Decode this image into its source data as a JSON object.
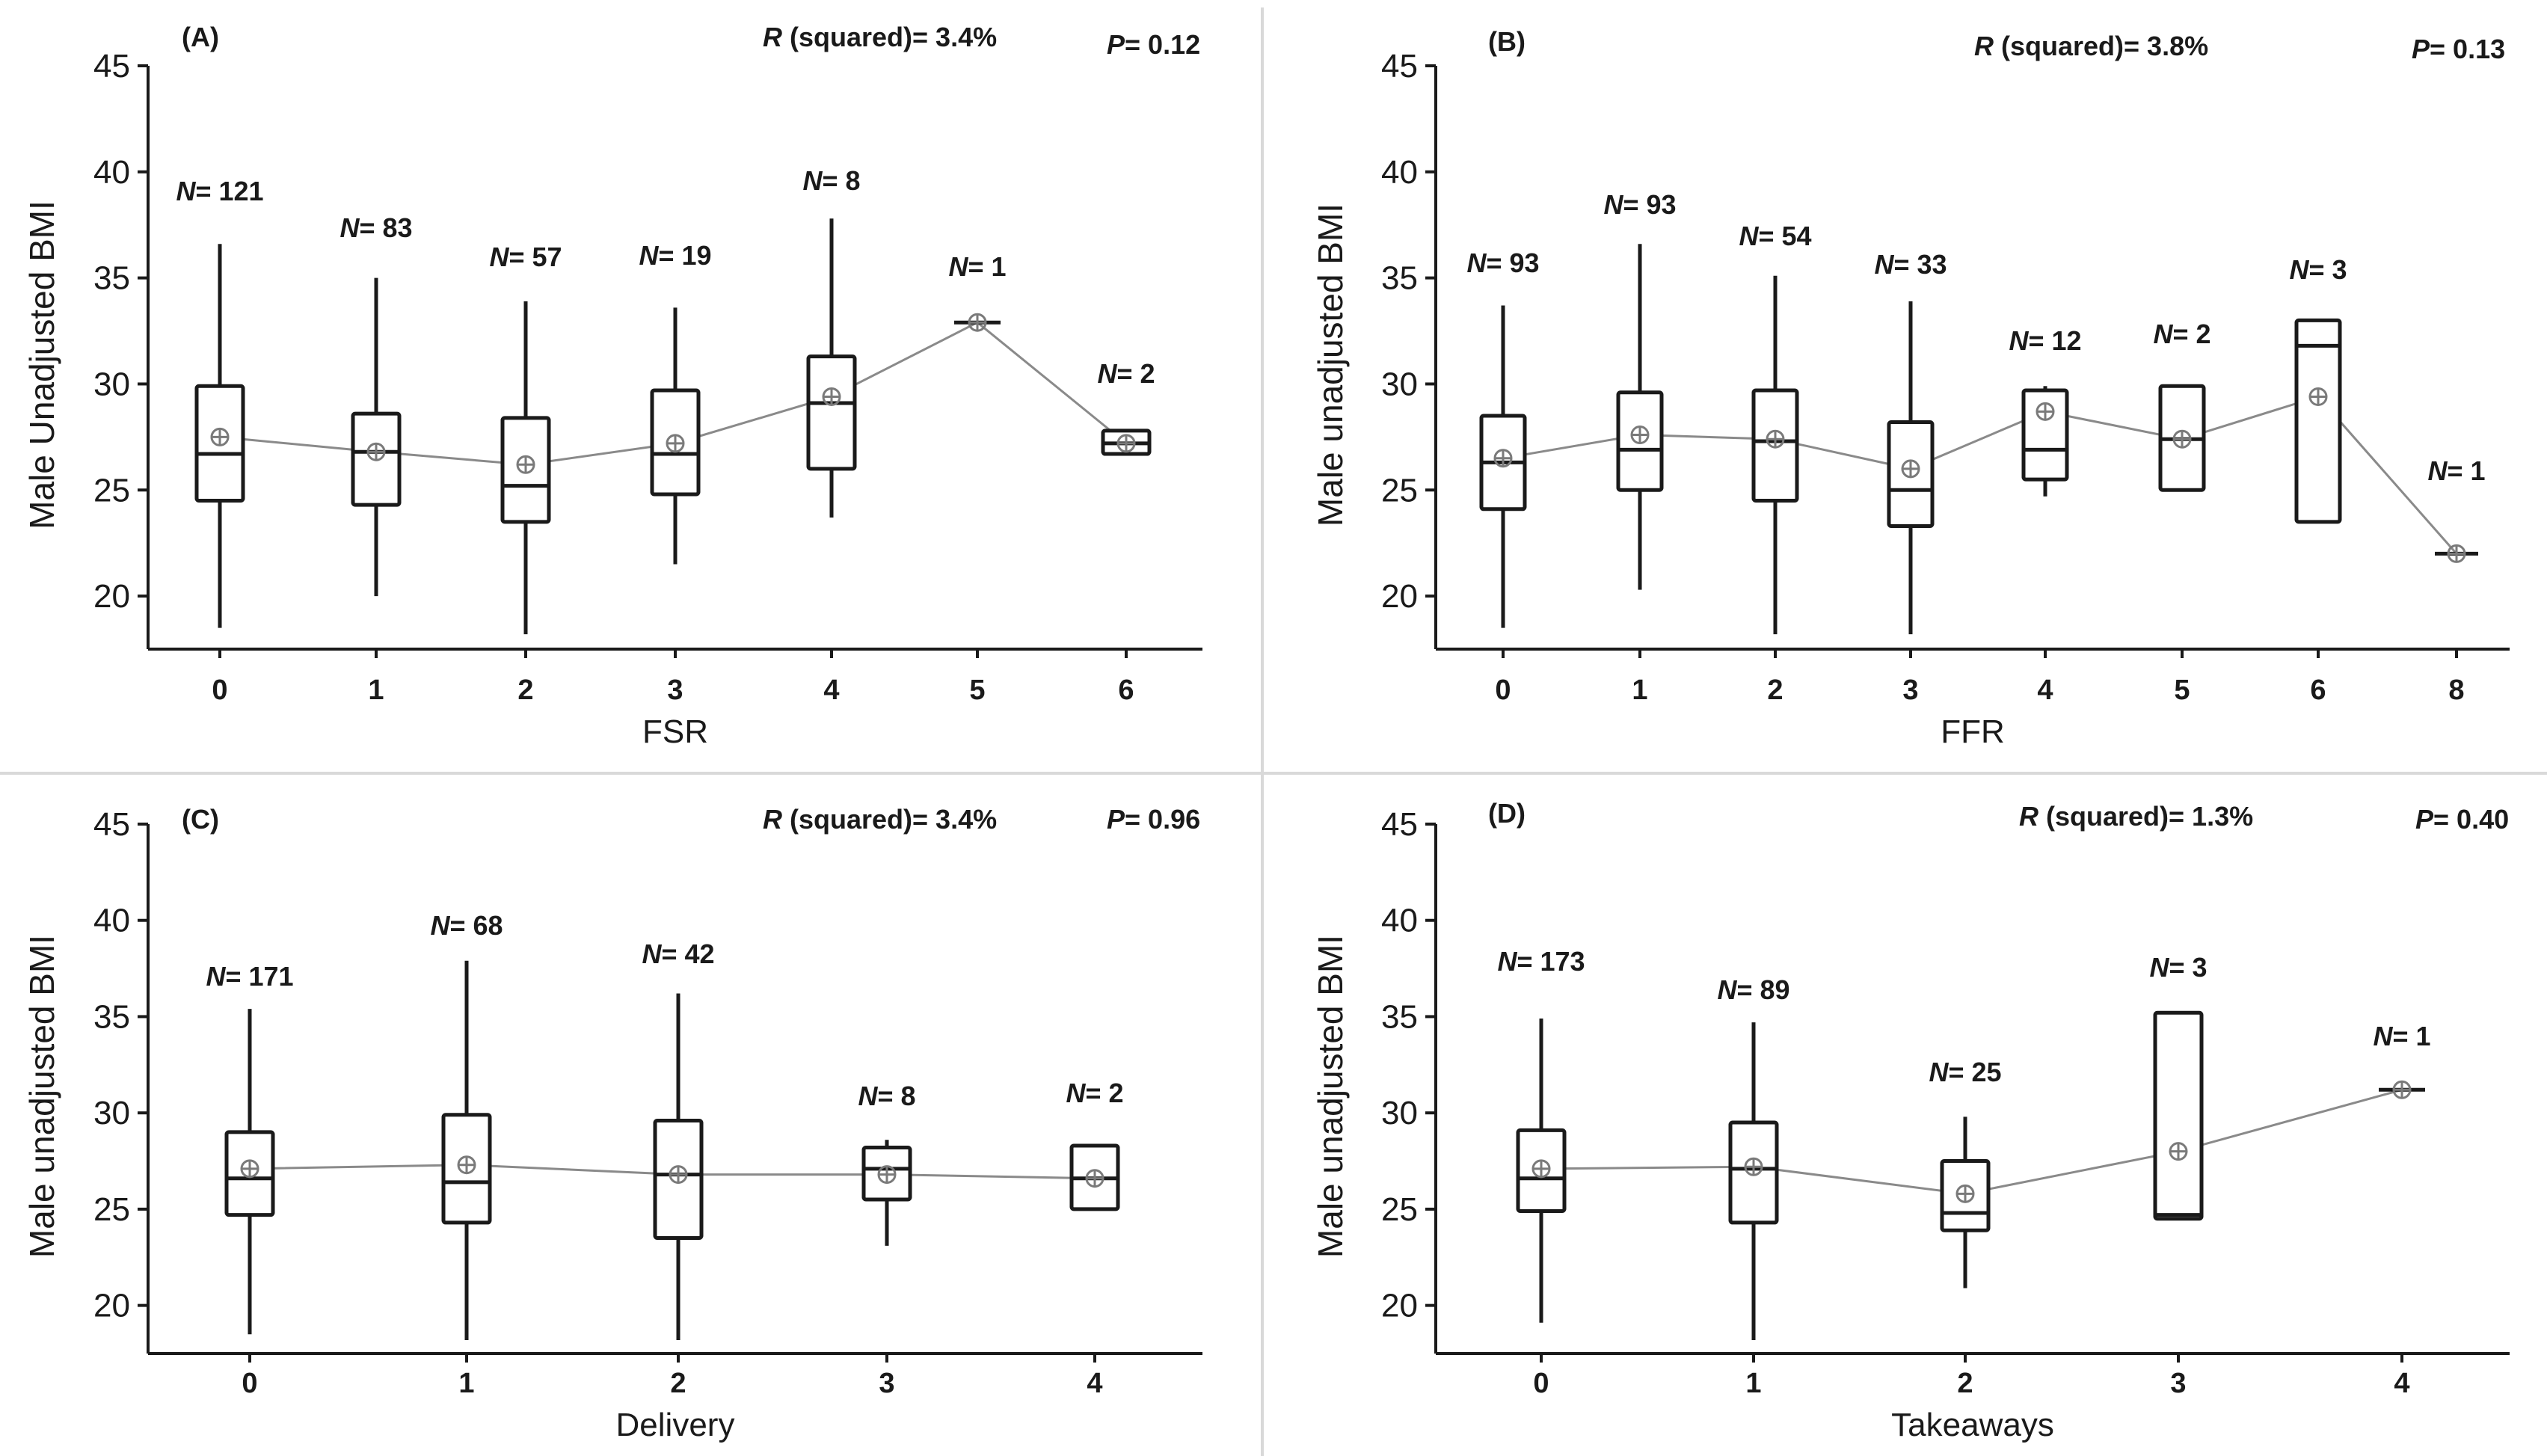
{
  "chart_data": [
    {
      "type": "box",
      "panel_label": "(A)",
      "xlabel": "FSR",
      "ylabel": "Male Unadjusted BMI",
      "ylim": [
        17.5,
        45
      ],
      "yticks": [
        20,
        25,
        30,
        35,
        40,
        45
      ],
      "r_squared": "3.4%",
      "p_value": "0.12",
      "categories": [
        "0",
        "1",
        "2",
        "3",
        "4",
        "5",
        "6"
      ],
      "n": [
        "121",
        "83",
        "57",
        "19",
        "8",
        "1",
        "2"
      ],
      "boxes": [
        {
          "min": 18.5,
          "q1": 24.5,
          "median": 26.7,
          "q3": 29.9,
          "max": 36.6,
          "mean": 27.5
        },
        {
          "min": 20.0,
          "q1": 24.3,
          "median": 26.8,
          "q3": 28.6,
          "max": 35.0,
          "mean": 26.8
        },
        {
          "min": 18.2,
          "q1": 23.5,
          "median": 25.2,
          "q3": 28.4,
          "max": 33.9,
          "mean": 26.2
        },
        {
          "min": 21.5,
          "q1": 24.8,
          "median": 26.7,
          "q3": 29.7,
          "max": 33.6,
          "mean": 27.2
        },
        {
          "min": 23.7,
          "q1": 26.0,
          "median": 29.1,
          "q3": 31.3,
          "max": 37.8,
          "mean": 29.4
        },
        {
          "min": 32.9,
          "q1": 32.9,
          "median": 32.9,
          "q3": 32.9,
          "max": 32.9,
          "mean": 32.9
        },
        {
          "min": 26.7,
          "q1": 26.7,
          "median": 27.2,
          "q3": 27.8,
          "max": 27.8,
          "mean": 27.2
        }
      ],
      "n_label_y": [
        121,
        83,
        57,
        19,
        8,
        1,
        2
      ]
    },
    {
      "type": "box",
      "panel_label": "(B)",
      "xlabel": "FFR",
      "ylabel": "Male unadjusted BMI",
      "ylim": [
        17.5,
        45
      ],
      "yticks": [
        20,
        25,
        30,
        35,
        40,
        45
      ],
      "r_squared": "3.8%",
      "p_value": "0.13",
      "categories": [
        "0",
        "1",
        "2",
        "3",
        "4",
        "5",
        "6",
        "8"
      ],
      "n": [
        "93",
        "93",
        "54",
        "33",
        "12",
        "2",
        "3",
        "1"
      ],
      "boxes": [
        {
          "min": 18.5,
          "q1": 24.1,
          "median": 26.3,
          "q3": 28.5,
          "max": 33.7,
          "mean": 26.5
        },
        {
          "min": 20.3,
          "q1": 25.0,
          "median": 26.9,
          "q3": 29.6,
          "max": 36.6,
          "mean": 27.6
        },
        {
          "min": 18.2,
          "q1": 24.5,
          "median": 27.3,
          "q3": 29.7,
          "max": 35.1,
          "mean": 27.4
        },
        {
          "min": 18.2,
          "q1": 23.3,
          "median": 25.0,
          "q3": 28.2,
          "max": 33.9,
          "mean": 26.0
        },
        {
          "min": 24.7,
          "q1": 25.5,
          "median": 26.9,
          "q3": 29.7,
          "max": 29.9,
          "mean": 28.7
        },
        {
          "min": 25.0,
          "q1": 25.0,
          "median": 27.4,
          "q3": 29.9,
          "max": 29.9,
          "mean": 27.4
        },
        {
          "min": 23.5,
          "q1": 23.5,
          "median": 31.8,
          "q3": 33.0,
          "max": 33.0,
          "mean": 29.4
        },
        {
          "min": 22.0,
          "q1": 22.0,
          "median": 22.0,
          "q3": 22.0,
          "max": 22.0,
          "mean": 22.0
        }
      ]
    },
    {
      "type": "box",
      "panel_label": "(C)",
      "xlabel": "Delivery",
      "ylabel": "Male unadjusted BMI",
      "ylim": [
        17.5,
        45
      ],
      "yticks": [
        20,
        25,
        30,
        35,
        40,
        45
      ],
      "r_squared": "3.4%",
      "p_value": "0.96",
      "categories": [
        "0",
        "1",
        "2",
        "3",
        "4"
      ],
      "n": [
        "171",
        "68",
        "42",
        "8",
        "2"
      ],
      "boxes": [
        {
          "min": 18.5,
          "q1": 24.7,
          "median": 26.6,
          "q3": 29.0,
          "max": 35.4,
          "mean": 27.1
        },
        {
          "min": 18.2,
          "q1": 24.3,
          "median": 26.4,
          "q3": 29.9,
          "max": 37.9,
          "mean": 27.3
        },
        {
          "min": 18.2,
          "q1": 23.5,
          "median": 26.8,
          "q3": 29.6,
          "max": 36.2,
          "mean": 26.8
        },
        {
          "min": 23.1,
          "q1": 25.5,
          "median": 27.1,
          "q3": 28.2,
          "max": 28.6,
          "mean": 26.8
        },
        {
          "min": 25.0,
          "q1": 25.0,
          "median": 26.6,
          "q3": 28.3,
          "max": 28.3,
          "mean": 26.6
        }
      ]
    },
    {
      "type": "box",
      "panel_label": "(D)",
      "xlabel": "Takeaways",
      "ylabel": "Male unadjusted BMI",
      "ylim": [
        17.5,
        45
      ],
      "yticks": [
        20,
        25,
        30,
        35,
        40,
        45
      ],
      "r_squared": "1.3%",
      "p_value": "0.40",
      "categories": [
        "0",
        "1",
        "2",
        "3",
        "4"
      ],
      "n": [
        "173",
        "89",
        "25",
        "3",
        "1"
      ],
      "boxes": [
        {
          "min": 19.1,
          "q1": 24.9,
          "median": 26.6,
          "q3": 29.1,
          "max": 34.9,
          "mean": 27.1
        },
        {
          "min": 18.2,
          "q1": 24.3,
          "median": 27.1,
          "q3": 29.5,
          "max": 34.7,
          "mean": 27.2
        },
        {
          "min": 20.9,
          "q1": 23.9,
          "median": 24.8,
          "q3": 27.5,
          "max": 29.8,
          "mean": 25.8
        },
        {
          "min": 24.5,
          "q1": 24.5,
          "median": 24.7,
          "q3": 35.2,
          "max": 35.2,
          "mean": 28.0
        },
        {
          "min": 31.2,
          "q1": 31.2,
          "median": 31.2,
          "q3": 31.2,
          "max": 31.2,
          "mean": 31.2
        }
      ]
    }
  ],
  "labels": {
    "r_prefix": "R",
    "r_suffix": " (squared)= ",
    "p_prefix": "P",
    "p_suffix": "= ",
    "n_prefix": "N",
    "n_suffix": "= "
  }
}
